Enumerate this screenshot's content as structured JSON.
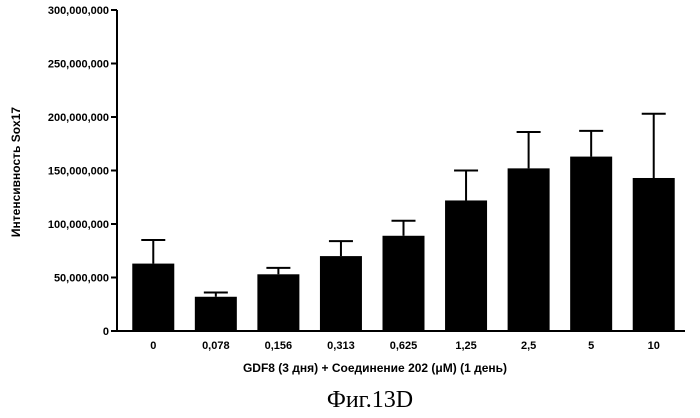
{
  "chart_data": {
    "type": "bar",
    "categories": [
      "0",
      "0,078",
      "0,156",
      "0,313",
      "0,625",
      "1,25",
      "2,5",
      "5",
      "10"
    ],
    "values": [
      63000000,
      32000000,
      53000000,
      70000000,
      89000000,
      122000000,
      152000000,
      163000000,
      143000000
    ],
    "error_upper": [
      85000000,
      36000000,
      59000000,
      84000000,
      103000000,
      150000000,
      186000000,
      187000000,
      203000000
    ],
    "ylim": [
      0,
      300000000
    ],
    "yticks": [
      "0",
      "50,000,000",
      "100,000,000",
      "150,000,000",
      "200,000,000",
      "250,000,000",
      "300,000,000"
    ],
    "ylabel": "Интенсивность Sox17",
    "xlabel": "GDF8 (3 дня) + Соединение 202 (μМ) (1 день)",
    "caption": "Фиг.13D",
    "bar_color": "#000000",
    "grid": false,
    "legend": "none"
  }
}
